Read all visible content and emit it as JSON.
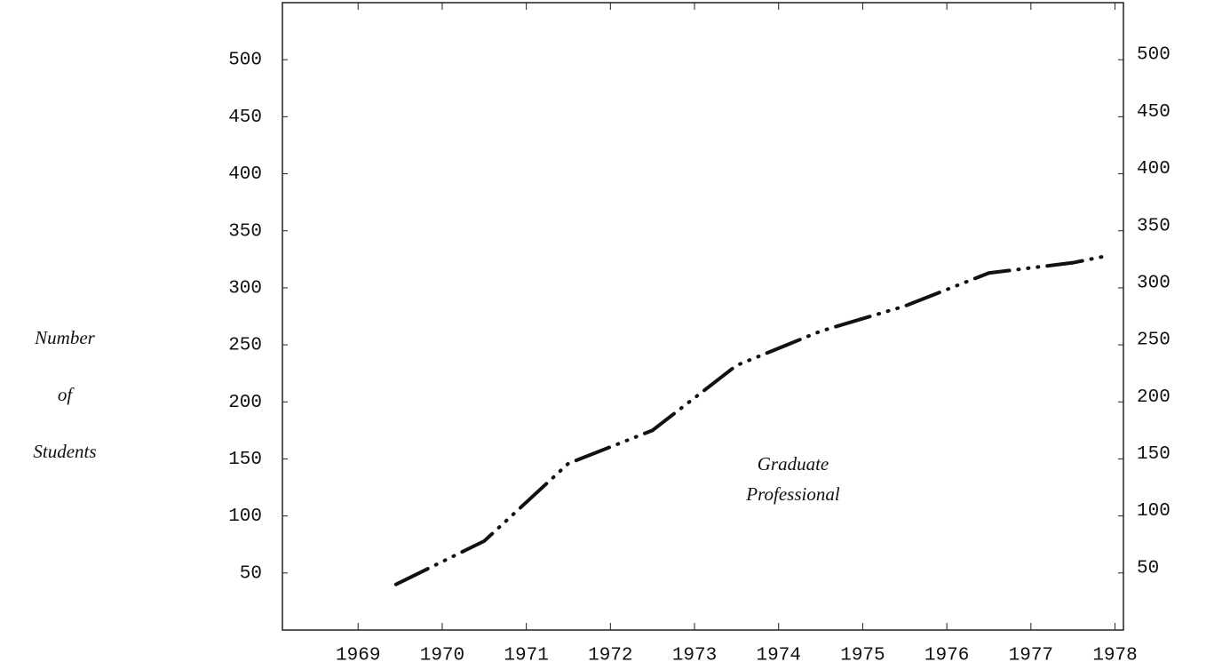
{
  "chart_data": {
    "type": "line",
    "ylabel_lines": [
      "Number",
      "of",
      "Students"
    ],
    "annotation_lines": [
      "Graduate",
      "Professional"
    ],
    "x": [
      1969.45,
      1970.5,
      1971.5,
      1972.5,
      1973.5,
      1974.5,
      1975.5,
      1976.5,
      1977.5,
      1977.9
    ],
    "series": [
      {
        "color": "#111111",
        "values": [
          40,
          78,
          146,
          175,
          232,
          262,
          284,
          313,
          322,
          328
        ]
      }
    ],
    "xlim": [
      1968.1,
      1978.1
    ],
    "xticks": [
      1969,
      1970,
      1971,
      1972,
      1973,
      1974,
      1975,
      1976,
      1977,
      1978
    ],
    "ylim": [
      0,
      550
    ],
    "yticks": [
      50,
      100,
      150,
      200,
      250,
      300,
      350,
      400,
      450,
      500
    ],
    "y2lim": [
      0,
      550
    ],
    "y2ticks": [
      50,
      100,
      150,
      200,
      250,
      300,
      350,
      400,
      450,
      500
    ],
    "grid": false
  }
}
